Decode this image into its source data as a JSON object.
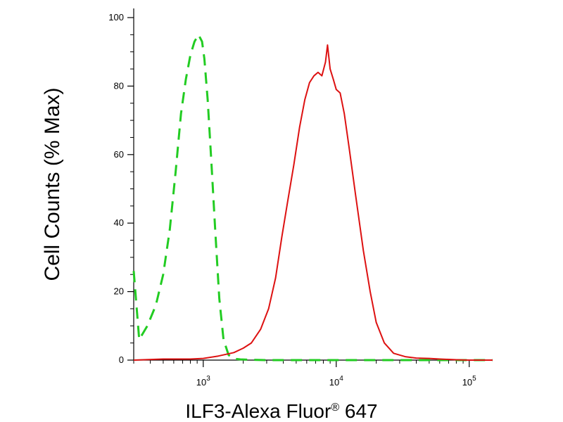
{
  "chart_data": {
    "type": "line",
    "title": "",
    "xlabel": "ILF3-Alexa Fluor",
    "xlabel_superscript": "®",
    "xlabel_suffix": " 647",
    "ylabel": "Cell Counts (% Max)",
    "xscale": "log",
    "xlim": [
      300,
      150000
    ],
    "ylim": [
      0,
      100
    ],
    "grid": false,
    "legend": "none",
    "y_ticks": [
      {
        "value": 0,
        "label": "0"
      },
      {
        "value": 20,
        "label": "20"
      },
      {
        "value": 40,
        "label": "40"
      },
      {
        "value": 60,
        "label": "60"
      },
      {
        "value": 80,
        "label": "80"
      },
      {
        "value": 100,
        "label": "100"
      }
    ],
    "x_major_ticks": [
      {
        "value": 1000,
        "base": "10",
        "exp": "3"
      },
      {
        "value": 10000,
        "base": "10",
        "exp": "4"
      },
      {
        "value": 100000,
        "base": "10",
        "exp": "5"
      }
    ],
    "series": [
      {
        "color": "#22cc22",
        "dash": "dashed",
        "x": [
          300,
          330,
          380,
          440,
          500,
          560,
          620,
          680,
          740,
          800,
          860,
          920,
          980,
          1020,
          1080,
          1150,
          1230,
          1320,
          1420,
          1550,
          1700,
          1900,
          2200,
          3000,
          5000,
          10000,
          20000,
          50000,
          100000,
          150000
        ],
        "y": [
          26,
          6,
          10,
          16,
          25,
          38,
          55,
          72,
          82,
          89,
          93,
          95,
          93,
          88,
          76,
          58,
          38,
          18,
          6,
          1.5,
          0.4,
          0.2,
          0.1,
          0,
          0,
          0,
          0,
          0,
          0,
          0
        ]
      },
      {
        "color": "#dd1111",
        "dash": "solid",
        "x": [
          300,
          500,
          800,
          1000,
          1300,
          1700,
          2000,
          2300,
          2700,
          3100,
          3500,
          3900,
          4300,
          4800,
          5300,
          5800,
          6300,
          6800,
          7300,
          7800,
          8300,
          8600,
          9000,
          9500,
          10000,
          10700,
          11500,
          12500,
          14000,
          16000,
          18000,
          20000,
          23000,
          27000,
          33000,
          40000,
          50000,
          60000,
          70000,
          80000,
          100000,
          150000
        ],
        "y": [
          0,
          0.3,
          0.3,
          0.5,
          1.2,
          2.2,
          3.5,
          5,
          9,
          15,
          24,
          36,
          46,
          57,
          68,
          76,
          81,
          83,
          84,
          83,
          87,
          92,
          85,
          82,
          79,
          78,
          72,
          62,
          48,
          32,
          20,
          11,
          5,
          2,
          1,
          0.6,
          0.5,
          0.3,
          0.2,
          0.1,
          0,
          0
        ]
      }
    ]
  }
}
